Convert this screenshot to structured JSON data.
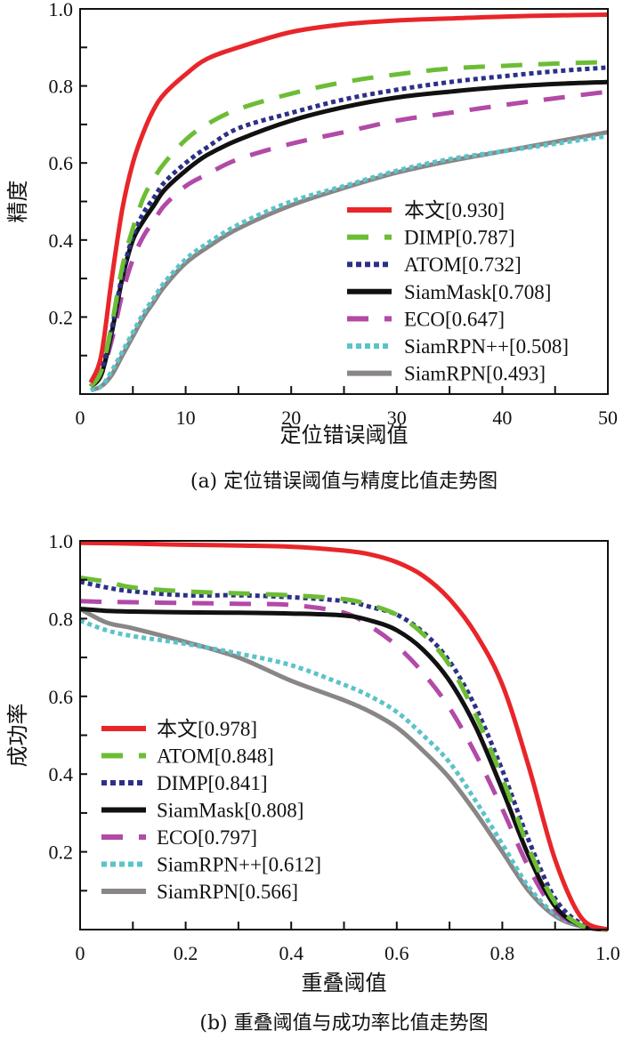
{
  "chart_data": [
    {
      "type": "line",
      "panel": "a",
      "caption": "(a) 定位错误阈值与精度比值走势图",
      "title": "",
      "xlabel": "定位错误阈值",
      "ylabel": "精度",
      "xlim": [
        0,
        50
      ],
      "ylim": [
        0,
        1.0
      ],
      "xticks": [
        0,
        10,
        20,
        30,
        40,
        50
      ],
      "xtick_labels": [
        "0",
        "10",
        "20",
        "30",
        "40",
        "50"
      ],
      "yticks": [
        0.2,
        0.4,
        0.6,
        0.8,
        1.0
      ],
      "ytick_labels": [
        "0.2",
        "0.4",
        "0.6",
        "0.8",
        "1.0"
      ],
      "grid": false,
      "legend_position": "bottom-right",
      "x": [
        1,
        2,
        3,
        4,
        5,
        6,
        7,
        8,
        10,
        12,
        15,
        20,
        25,
        30,
        35,
        40,
        45,
        50
      ],
      "series": [
        {
          "name": "本文[0.930]",
          "color": "#e8262a",
          "style": "solid",
          "values": [
            0.03,
            0.1,
            0.3,
            0.48,
            0.6,
            0.68,
            0.74,
            0.78,
            0.83,
            0.87,
            0.9,
            0.94,
            0.96,
            0.97,
            0.975,
            0.98,
            0.983,
            0.985
          ]
        },
        {
          "name": "DIMP[0.787]",
          "color": "#6cbd35",
          "style": "dash",
          "values": [
            0.02,
            0.06,
            0.18,
            0.33,
            0.43,
            0.51,
            0.56,
            0.6,
            0.66,
            0.7,
            0.74,
            0.78,
            0.81,
            0.83,
            0.845,
            0.852,
            0.858,
            0.862
          ]
        },
        {
          "name": "ATOM[0.732]",
          "color": "#2d3088",
          "style": "dot",
          "values": [
            0.02,
            0.06,
            0.17,
            0.31,
            0.41,
            0.47,
            0.51,
            0.55,
            0.6,
            0.64,
            0.69,
            0.73,
            0.765,
            0.79,
            0.81,
            0.825,
            0.838,
            0.848
          ]
        },
        {
          "name": "SiamMask[0.708]",
          "color": "#111111",
          "style": "solid",
          "values": [
            0.02,
            0.05,
            0.16,
            0.3,
            0.4,
            0.45,
            0.49,
            0.53,
            0.58,
            0.62,
            0.66,
            0.71,
            0.745,
            0.77,
            0.785,
            0.797,
            0.805,
            0.81
          ]
        },
        {
          "name": "ECO[0.647]",
          "color": "#b24aa8",
          "style": "dash",
          "values": [
            0.02,
            0.05,
            0.14,
            0.26,
            0.35,
            0.41,
            0.45,
            0.49,
            0.54,
            0.57,
            0.61,
            0.65,
            0.68,
            0.71,
            0.73,
            0.75,
            0.768,
            0.785
          ]
        },
        {
          "name": "SiamRPN++[0.508]",
          "color": "#5bc3c9",
          "style": "dot",
          "values": [
            0.01,
            0.02,
            0.06,
            0.11,
            0.16,
            0.21,
            0.25,
            0.29,
            0.35,
            0.39,
            0.44,
            0.5,
            0.54,
            0.58,
            0.61,
            0.63,
            0.65,
            0.67
          ]
        },
        {
          "name": "SiamRPN[0.493]",
          "color": "#8a8686",
          "style": "solid",
          "values": [
            0.01,
            0.02,
            0.05,
            0.1,
            0.15,
            0.2,
            0.24,
            0.28,
            0.34,
            0.38,
            0.43,
            0.49,
            0.535,
            0.575,
            0.605,
            0.63,
            0.655,
            0.68
          ]
        }
      ]
    },
    {
      "type": "line",
      "panel": "b",
      "caption": "(b) 重叠阈值与成功率比值走势图",
      "title": "",
      "xlabel": "重叠阈值",
      "ylabel": "成功率",
      "xlim": [
        0,
        1.0
      ],
      "ylim": [
        0,
        1.0
      ],
      "xticks": [
        0,
        0.2,
        0.4,
        0.6,
        0.8,
        1.0
      ],
      "xtick_labels": [
        "0",
        "0.2",
        "0.4",
        "0.6",
        "0.8",
        "1.0"
      ],
      "yticks": [
        0.2,
        0.4,
        0.6,
        0.8,
        1.0
      ],
      "ytick_labels": [
        "0.2",
        "0.4",
        "0.6",
        "0.8",
        "1.0"
      ],
      "grid": false,
      "legend_position": "bottom-left",
      "x": [
        0,
        0.05,
        0.1,
        0.2,
        0.3,
        0.4,
        0.5,
        0.55,
        0.6,
        0.65,
        0.7,
        0.75,
        0.8,
        0.85,
        0.9,
        0.95,
        1.0
      ],
      "series": [
        {
          "name": "本文[0.978]",
          "color": "#e8262a",
          "style": "solid",
          "values": [
            0.995,
            0.994,
            0.993,
            0.99,
            0.988,
            0.985,
            0.975,
            0.965,
            0.945,
            0.91,
            0.85,
            0.76,
            0.63,
            0.42,
            0.18,
            0.03,
            0.0
          ]
        },
        {
          "name": "ATOM[0.848]",
          "color": "#6cbd35",
          "style": "dash",
          "values": [
            0.905,
            0.895,
            0.88,
            0.87,
            0.865,
            0.86,
            0.85,
            0.835,
            0.81,
            0.76,
            0.68,
            0.55,
            0.39,
            0.21,
            0.07,
            0.01,
            0.0
          ]
        },
        {
          "name": "DIMP[0.841]",
          "color": "#2d3088",
          "style": "dot",
          "values": [
            0.895,
            0.88,
            0.87,
            0.86,
            0.86,
            0.855,
            0.845,
            0.83,
            0.81,
            0.765,
            0.69,
            0.57,
            0.41,
            0.23,
            0.08,
            0.015,
            0.0
          ]
        },
        {
          "name": "SiamMask[0.808]",
          "color": "#111111",
          "style": "solid",
          "values": [
            0.825,
            0.82,
            0.818,
            0.816,
            0.815,
            0.813,
            0.808,
            0.795,
            0.77,
            0.72,
            0.64,
            0.52,
            0.36,
            0.19,
            0.06,
            0.01,
            0.0
          ]
        },
        {
          "name": "ECO[0.797]",
          "color": "#b24aa8",
          "style": "dash",
          "values": [
            0.845,
            0.843,
            0.842,
            0.84,
            0.838,
            0.835,
            0.815,
            0.78,
            0.73,
            0.66,
            0.57,
            0.45,
            0.31,
            0.16,
            0.05,
            0.01,
            0.0
          ]
        },
        {
          "name": "SiamRPN++[0.612]",
          "color": "#5bc3c9",
          "style": "dot",
          "values": [
            0.795,
            0.77,
            0.755,
            0.735,
            0.71,
            0.68,
            0.63,
            0.6,
            0.56,
            0.5,
            0.43,
            0.33,
            0.22,
            0.11,
            0.04,
            0.01,
            0.0
          ]
        },
        {
          "name": "SiamRPN[0.566]",
          "color": "#8a8686",
          "style": "solid",
          "values": [
            0.825,
            0.79,
            0.775,
            0.74,
            0.7,
            0.64,
            0.59,
            0.56,
            0.52,
            0.46,
            0.39,
            0.3,
            0.2,
            0.1,
            0.035,
            0.008,
            0.0
          ]
        }
      ]
    }
  ]
}
